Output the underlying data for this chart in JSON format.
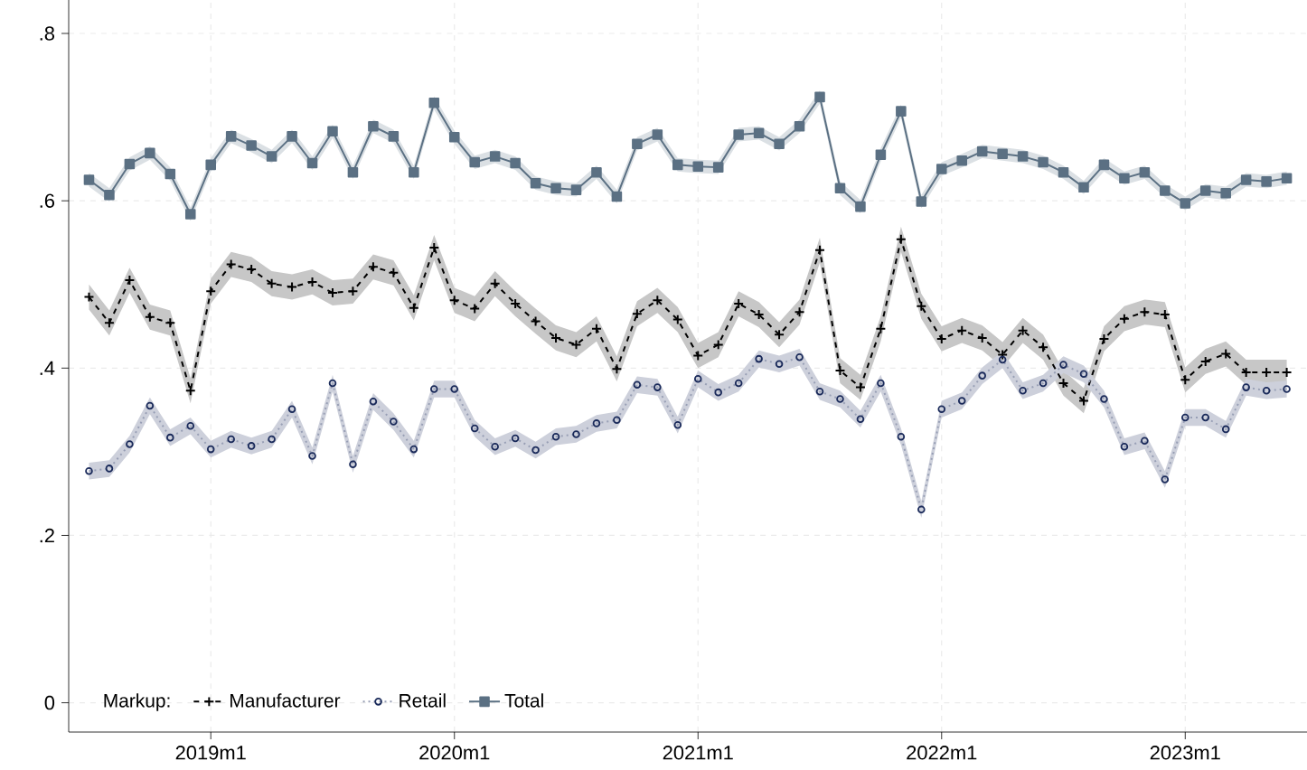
{
  "chart_data": {
    "type": "line",
    "x": [
      "2018-07",
      "2018-08",
      "2018-09",
      "2018-10",
      "2018-11",
      "2018-12",
      "2019-01",
      "2019-02",
      "2019-03",
      "2019-04",
      "2019-05",
      "2019-06",
      "2019-07",
      "2019-08",
      "2019-09",
      "2019-10",
      "2019-11",
      "2019-12",
      "2020-01",
      "2020-02",
      "2020-03",
      "2020-04",
      "2020-05",
      "2020-06",
      "2020-07",
      "2020-08",
      "2020-09",
      "2020-10",
      "2020-11",
      "2020-12",
      "2021-01",
      "2021-02",
      "2021-03",
      "2021-04",
      "2021-05",
      "2021-06",
      "2021-07",
      "2021-08",
      "2021-09",
      "2021-10",
      "2021-11",
      "2021-12",
      "2022-01",
      "2022-02",
      "2022-03",
      "2022-04",
      "2022-05",
      "2022-06",
      "2022-07",
      "2022-08",
      "2022-09",
      "2022-10",
      "2022-11",
      "2022-12",
      "2023-01",
      "2023-02",
      "2023-03",
      "2023-04",
      "2023-05",
      "2023-06"
    ],
    "series": [
      {
        "name": "Manufacturer",
        "color": "#000000",
        "marker": "cross",
        "line_style": "dashed",
        "values": [
          0.485,
          0.454,
          0.505,
          0.461,
          0.454,
          0.373,
          0.492,
          0.524,
          0.518,
          0.501,
          0.497,
          0.503,
          0.49,
          0.492,
          0.521,
          0.514,
          0.472,
          0.544,
          0.481,
          0.471,
          0.501,
          0.477,
          0.456,
          0.436,
          0.428,
          0.447,
          0.399,
          0.465,
          0.481,
          0.458,
          0.415,
          0.428,
          0.477,
          0.464,
          0.44,
          0.467,
          0.541,
          0.397,
          0.377,
          0.447,
          0.554,
          0.474,
          0.435,
          0.445,
          0.436,
          0.416,
          0.445,
          0.425,
          0.382,
          0.361,
          0.435,
          0.459,
          0.467,
          0.464,
          0.386,
          0.408,
          0.417,
          0.395,
          0.395,
          0.395
        ],
        "lower": [
          0.47,
          0.439,
          0.49,
          0.446,
          0.439,
          0.358,
          0.477,
          0.509,
          0.503,
          0.486,
          0.482,
          0.488,
          0.475,
          0.477,
          0.506,
          0.499,
          0.457,
          0.529,
          0.466,
          0.456,
          0.486,
          0.462,
          0.441,
          0.421,
          0.413,
          0.432,
          0.384,
          0.45,
          0.466,
          0.443,
          0.4,
          0.413,
          0.462,
          0.449,
          0.425,
          0.452,
          0.526,
          0.382,
          0.362,
          0.432,
          0.539,
          0.459,
          0.42,
          0.43,
          0.421,
          0.401,
          0.43,
          0.41,
          0.367,
          0.346,
          0.42,
          0.444,
          0.452,
          0.449,
          0.371,
          0.393,
          0.402,
          0.38,
          0.38,
          0.38
        ],
        "upper": [
          0.5,
          0.469,
          0.52,
          0.476,
          0.469,
          0.388,
          0.507,
          0.539,
          0.533,
          0.516,
          0.512,
          0.518,
          0.505,
          0.507,
          0.536,
          0.529,
          0.487,
          0.559,
          0.496,
          0.486,
          0.516,
          0.492,
          0.471,
          0.451,
          0.443,
          0.462,
          0.414,
          0.48,
          0.496,
          0.473,
          0.43,
          0.443,
          0.492,
          0.479,
          0.455,
          0.482,
          0.556,
          0.412,
          0.392,
          0.462,
          0.569,
          0.489,
          0.45,
          0.46,
          0.451,
          0.431,
          0.46,
          0.44,
          0.397,
          0.376,
          0.45,
          0.474,
          0.482,
          0.479,
          0.401,
          0.423,
          0.432,
          0.41,
          0.41,
          0.41
        ]
      },
      {
        "name": "Retail",
        "color": "#1a2a5a",
        "marker": "circle",
        "line_style": "dotted",
        "values": [
          0.277,
          0.28,
          0.309,
          0.355,
          0.317,
          0.331,
          0.303,
          0.315,
          0.307,
          0.315,
          0.351,
          0.295,
          0.382,
          0.285,
          0.36,
          0.336,
          0.303,
          0.375,
          0.375,
          0.328,
          0.306,
          0.316,
          0.302,
          0.318,
          0.321,
          0.334,
          0.338,
          0.38,
          0.377,
          0.332,
          0.387,
          0.371,
          0.382,
          0.411,
          0.405,
          0.413,
          0.372,
          0.363,
          0.339,
          0.382,
          0.318,
          0.231,
          0.351,
          0.361,
          0.391,
          0.41,
          0.373,
          0.382,
          0.404,
          0.393,
          0.363,
          0.306,
          0.313,
          0.267,
          0.341,
          0.341,
          0.327,
          0.377,
          0.373,
          0.375
        ],
        "lower": [
          0.267,
          0.27,
          0.299,
          0.345,
          0.307,
          0.321,
          0.293,
          0.305,
          0.297,
          0.305,
          0.341,
          0.285,
          0.372,
          0.275,
          0.35,
          0.326,
          0.293,
          0.365,
          0.365,
          0.318,
          0.296,
          0.306,
          0.292,
          0.308,
          0.311,
          0.324,
          0.328,
          0.37,
          0.367,
          0.322,
          0.377,
          0.361,
          0.372,
          0.401,
          0.395,
          0.403,
          0.362,
          0.353,
          0.329,
          0.372,
          0.308,
          0.221,
          0.341,
          0.351,
          0.381,
          0.4,
          0.363,
          0.372,
          0.394,
          0.383,
          0.353,
          0.296,
          0.303,
          0.257,
          0.331,
          0.331,
          0.317,
          0.367,
          0.363,
          0.365
        ],
        "upper": [
          0.287,
          0.29,
          0.319,
          0.365,
          0.327,
          0.341,
          0.313,
          0.325,
          0.317,
          0.325,
          0.361,
          0.305,
          0.392,
          0.295,
          0.37,
          0.346,
          0.313,
          0.385,
          0.385,
          0.338,
          0.316,
          0.326,
          0.312,
          0.328,
          0.331,
          0.344,
          0.348,
          0.39,
          0.387,
          0.342,
          0.397,
          0.381,
          0.392,
          0.421,
          0.415,
          0.423,
          0.382,
          0.373,
          0.349,
          0.392,
          0.328,
          0.241,
          0.361,
          0.371,
          0.401,
          0.42,
          0.383,
          0.392,
          0.414,
          0.403,
          0.373,
          0.316,
          0.323,
          0.277,
          0.351,
          0.351,
          0.337,
          0.387,
          0.383,
          0.385
        ]
      },
      {
        "name": "Total",
        "color": "#5b7083",
        "marker": "square",
        "line_style": "solid",
        "values": [
          0.625,
          0.607,
          0.644,
          0.657,
          0.632,
          0.584,
          0.643,
          0.677,
          0.666,
          0.653,
          0.677,
          0.645,
          0.683,
          0.634,
          0.689,
          0.677,
          0.634,
          0.717,
          0.676,
          0.646,
          0.653,
          0.645,
          0.621,
          0.615,
          0.613,
          0.634,
          0.605,
          0.668,
          0.679,
          0.643,
          0.641,
          0.64,
          0.679,
          0.681,
          0.668,
          0.689,
          0.724,
          0.615,
          0.593,
          0.655,
          0.707,
          0.599,
          0.638,
          0.648,
          0.659,
          0.656,
          0.653,
          0.646,
          0.634,
          0.616,
          0.643,
          0.627,
          0.634,
          0.612,
          0.597,
          0.612,
          0.609,
          0.625,
          0.623,
          0.627
        ],
        "lower": [
          0.617,
          0.599,
          0.636,
          0.649,
          0.624,
          0.576,
          0.635,
          0.669,
          0.658,
          0.645,
          0.669,
          0.637,
          0.675,
          0.626,
          0.681,
          0.669,
          0.626,
          0.709,
          0.668,
          0.638,
          0.645,
          0.637,
          0.613,
          0.607,
          0.605,
          0.626,
          0.597,
          0.66,
          0.671,
          0.635,
          0.633,
          0.632,
          0.671,
          0.673,
          0.66,
          0.681,
          0.716,
          0.607,
          0.585,
          0.647,
          0.699,
          0.591,
          0.63,
          0.64,
          0.651,
          0.648,
          0.645,
          0.638,
          0.626,
          0.608,
          0.635,
          0.619,
          0.626,
          0.604,
          0.589,
          0.604,
          0.601,
          0.617,
          0.615,
          0.619
        ],
        "upper": [
          0.633,
          0.615,
          0.652,
          0.665,
          0.64,
          0.592,
          0.651,
          0.685,
          0.674,
          0.661,
          0.685,
          0.653,
          0.691,
          0.642,
          0.697,
          0.685,
          0.642,
          0.725,
          0.684,
          0.654,
          0.661,
          0.653,
          0.629,
          0.623,
          0.621,
          0.642,
          0.613,
          0.676,
          0.687,
          0.651,
          0.649,
          0.648,
          0.687,
          0.689,
          0.676,
          0.697,
          0.732,
          0.623,
          0.601,
          0.663,
          0.715,
          0.607,
          0.646,
          0.656,
          0.667,
          0.664,
          0.661,
          0.654,
          0.642,
          0.624,
          0.651,
          0.635,
          0.642,
          0.62,
          0.605,
          0.62,
          0.617,
          0.633,
          0.631,
          0.635
        ]
      }
    ],
    "xlim": [
      "2018-06",
      "2023-07"
    ],
    "xticks": [
      {
        "value": "2019-01",
        "label": "2019m1"
      },
      {
        "value": "2020-01",
        "label": "2020m1"
      },
      {
        "value": "2021-01",
        "label": "2021m1"
      },
      {
        "value": "2022-01",
        "label": "2022m1"
      },
      {
        "value": "2023-01",
        "label": "2023m1"
      }
    ],
    "ylim": [
      -0.035,
      0.84
    ],
    "yticks": [
      0,
      {
        "value": 0.2,
        "label": ".2"
      },
      {
        "value": 0.4,
        "label": ".4"
      },
      {
        "value": 0.6,
        "label": ".6"
      },
      {
        "value": 0.8,
        "label": ".8"
      }
    ],
    "grid": true,
    "legend": "bottom left",
    "legend_title": "Markup:"
  }
}
